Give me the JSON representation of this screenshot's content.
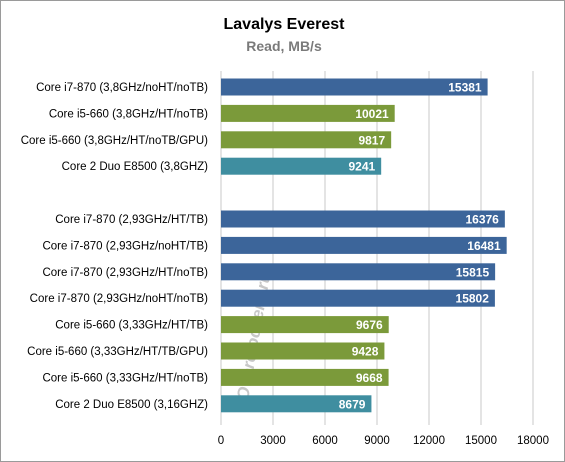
{
  "chart_data": {
    "type": "bar",
    "orientation": "horizontal",
    "title": "Lavalys Everest",
    "subtitle": "Read, MB/s",
    "xlim": [
      0,
      18000
    ],
    "xticks": [
      0,
      3000,
      6000,
      9000,
      12000,
      15000,
      18000
    ],
    "grid": "vertical",
    "watermark": "Overclockers.ru",
    "groups": [
      {
        "bars": [
          {
            "category": "Core i7-870 (3,8GHz/noHT/noTB)",
            "value": 15381,
            "color": "#3c659a"
          },
          {
            "category": "Core i5-660 (3,8GHz/HT/noTB)",
            "value": 10021,
            "color": "#7b9a3a"
          },
          {
            "category": "Core i5-660 (3,8GHz/HT/noTB/GPU)",
            "value": 9817,
            "color": "#7b9a3a"
          },
          {
            "category": "Core 2 Duo E8500 (3,8GHZ)",
            "value": 9241,
            "color": "#3f8ea0"
          }
        ]
      },
      {
        "bars": [
          {
            "category": "Core i7-870 (2,93GHz/HT/TB)",
            "value": 16376,
            "color": "#3c659a"
          },
          {
            "category": "Core i7-870 (2,93GHz/noHT/TB)",
            "value": 16481,
            "color": "#3c659a"
          },
          {
            "category": "Core i7-870 (2,93GHz/HT/noTB)",
            "value": 15815,
            "color": "#3c659a"
          },
          {
            "category": "Core i7-870 (2,93GHz/noHT/noTB)",
            "value": 15802,
            "color": "#3c659a"
          },
          {
            "category": "Core i5-660 (3,33GHz/HT/TB)",
            "value": 9676,
            "color": "#7b9a3a"
          },
          {
            "category": "Core i5-660 (3,33GHz/HT/TB/GPU)",
            "value": 9428,
            "color": "#7b9a3a"
          },
          {
            "category": "Core i5-660 (3,33GHz/HT/noTB)",
            "value": 9668,
            "color": "#7b9a3a"
          },
          {
            "category": "Core 2 Duo E8500 (3,16GHZ)",
            "value": 8679,
            "color": "#3f8ea0"
          }
        ]
      }
    ]
  }
}
